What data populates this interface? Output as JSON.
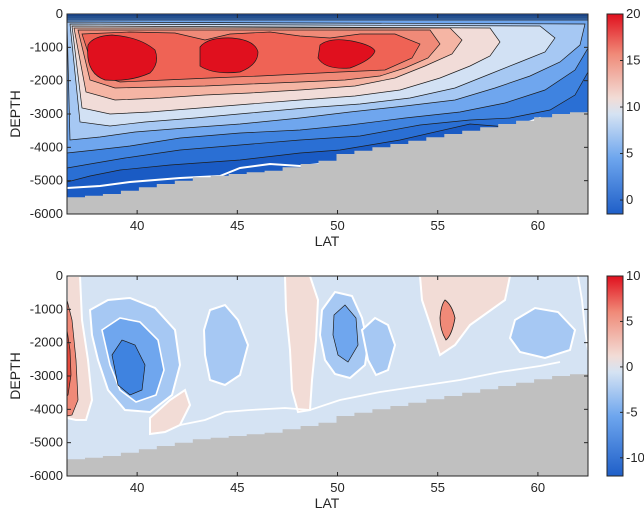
{
  "chart_data": [
    {
      "type": "contour",
      "title": "",
      "xlabel": "LAT",
      "ylabel": "DEPTH",
      "xlim": [
        36.5,
        62.5
      ],
      "ylim": [
        -6000,
        0
      ],
      "xticks": [
        "40",
        "45",
        "50",
        "55",
        "60"
      ],
      "yticks": [
        "0",
        "-1000",
        "-2000",
        "-3000",
        "-4000",
        "-5000",
        "-6000"
      ],
      "colorbar": {
        "ticks": [
          "0",
          "5",
          "10",
          "15",
          "20"
        ],
        "range": [
          -1.5,
          20
        ]
      },
      "contour_interval": 2,
      "features": [
        {
          "kind": "maximum",
          "lat": 39,
          "depth": -1200,
          "value": 19
        },
        {
          "kind": "maximum",
          "lat": 44.5,
          "depth": -1100,
          "value": 19
        },
        {
          "kind": "maximum",
          "lat": 50,
          "depth": -1200,
          "value": 19
        },
        {
          "kind": "zero-contour",
          "lat_range": [
            36.5,
            62
          ],
          "depth": -5000
        }
      ],
      "colors": {
        "low": "#1f5fc8",
        "mid": "#e8e8ea",
        "high": "#e0101e",
        "land": "#c0c0c0"
      },
      "bathymetry_depth": [
        -5500,
        -5450,
        -5400,
        -5300,
        -5200,
        -5100,
        -5000,
        -4900,
        -4850,
        -4800,
        -4750,
        -4700,
        -4600,
        -4500,
        -4400,
        -4200,
        -4100,
        -4000,
        -3900,
        -3800,
        -3700,
        -3600,
        -3500,
        -3400,
        -3300,
        -3200,
        -3100,
        -3000,
        -2950
      ]
    },
    {
      "type": "contour",
      "title": "",
      "xlabel": "LAT",
      "ylabel": "DEPTH",
      "xlim": [
        36.5,
        62.5
      ],
      "ylim": [
        -6000,
        0
      ],
      "xticks": [
        "40",
        "45",
        "50",
        "55",
        "60"
      ],
      "yticks": [
        "0",
        "-1000",
        "-2000",
        "-3000",
        "-4000",
        "-5000",
        "-6000"
      ],
      "colorbar": {
        "ticks": [
          "-10",
          "-5",
          "0",
          "5",
          "10"
        ],
        "range": [
          -12,
          10
        ]
      },
      "contour_interval": 2,
      "features": [
        {
          "kind": "maximum",
          "lat": 36.8,
          "depth": -3200,
          "value": 8
        },
        {
          "kind": "minimum",
          "lat": 39.5,
          "depth": -3300,
          "value": -7
        },
        {
          "kind": "minimum",
          "lat": 50.3,
          "depth": -1800,
          "value": -5
        },
        {
          "kind": "maximum",
          "lat": 55,
          "depth": -1200,
          "value": 3
        },
        {
          "kind": "minimum",
          "lat": 59.5,
          "depth": -2000,
          "value": -3
        }
      ],
      "colors": {
        "low": "#1f5fc8",
        "mid": "#e8e8ea",
        "high": "#e0101e",
        "land": "#c0c0c0"
      },
      "bathymetry_depth": [
        -5500,
        -5450,
        -5400,
        -5300,
        -5200,
        -5100,
        -5000,
        -4900,
        -4850,
        -4800,
        -4750,
        -4700,
        -4600,
        -4500,
        -4400,
        -4200,
        -4100,
        -4000,
        -3900,
        -3800,
        -3700,
        -3600,
        -3500,
        -3400,
        -3300,
        -3200,
        -3100,
        -3000,
        -2950
      ]
    }
  ]
}
